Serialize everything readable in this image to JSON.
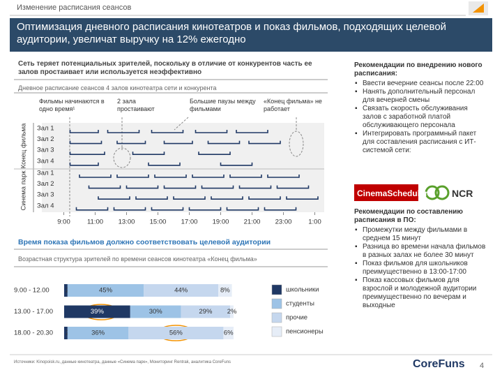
{
  "header": {
    "section": "Изменение расписания сеансов",
    "title": "Оптимизация дневного расписания кинотеатров и показ фильмов, подходящих целевой аудитории, увеличат выручку на 12% ежегодно"
  },
  "finding": "Сеть теряет потенциальных зрителей, поскольку в отличие от конкурентов часть ее залов простаивает или используется неэффективно",
  "chart_data": [
    {
      "type": "gantt",
      "title": "Дневное расписание сеансов 4 залов кинотеатра сети и конкурента",
      "color": "#1f3864",
      "groups": [
        {
          "name": "Конец фильма",
          "rows": [
            {
              "name": "Зал 1",
              "sessions": [
                [
                  9.4,
                  11.2
                ],
                [
                  11.8,
                  13.8
                ],
                [
                  14.6,
                  16.6
                ],
                [
                  17.4,
                  19.4
                ],
                [
                  20,
                  22
                ]
              ]
            },
            {
              "name": "Зал 2",
              "sessions": [
                [
                  9.4,
                  11.4
                ],
                [
                  12.4,
                  14.2
                ],
                [
                  15.4,
                  17.2
                ],
                [
                  18.2,
                  20.2
                ],
                [
                  20.8,
                  22.8
                ]
              ]
            },
            {
              "name": "Зал 3",
              "sessions": [
                [
                  9.4,
                  11.6
                ],
                [
                  13.4,
                  15.4
                ],
                [
                  17.6,
                  19.6
                ]
              ]
            },
            {
              "name": "Зал 4",
              "sessions": [
                [
                  9.4,
                  11.2
                ],
                [
                  14.4,
                  16.4
                ],
                [
                  19,
                  21
                ]
              ]
            }
          ]
        },
        {
          "name": "Синема парк",
          "rows": [
            {
              "name": "Зал 1",
              "sessions": [
                [
                  10,
                  12
                ],
                [
                  12.4,
                  14.4
                ],
                [
                  14.8,
                  16.8
                ],
                [
                  17.2,
                  19.2
                ],
                [
                  19.6,
                  21.6
                ],
                [
                  22,
                  24
                ]
              ]
            },
            {
              "name": "Зал 2",
              "sessions": [
                [
                  10.6,
                  12.6
                ],
                [
                  13,
                  15
                ],
                [
                  15.4,
                  17.4
                ],
                [
                  17.8,
                  19.8
                ],
                [
                  20.2,
                  22.2
                ],
                [
                  22.6,
                  24.6
                ]
              ]
            },
            {
              "name": "Зал 3",
              "sessions": [
                [
                  11.2,
                  13.2
                ],
                [
                  13.6,
                  15.6
                ],
                [
                  16,
                  18
                ],
                [
                  18.4,
                  20.4
                ],
                [
                  20.8,
                  22.8
                ],
                [
                  23.2,
                  25.2
                ]
              ]
            },
            {
              "name": "Зал 4",
              "sessions": [
                [
                  9.8,
                  11.8
                ],
                [
                  12.2,
                  14.2
                ],
                [
                  14.6,
                  16.6
                ],
                [
                  17,
                  19
                ],
                [
                  19.4,
                  21.4
                ],
                [
                  21.8,
                  23.8
                ]
              ]
            }
          ]
        }
      ],
      "xlim": [
        7.6,
        25.6
      ],
      "xticks": [
        {
          "value": 9,
          "label": "9:00"
        },
        {
          "value": 11,
          "label": "11:00"
        },
        {
          "value": 13,
          "label": "13:00"
        },
        {
          "value": 15,
          "label": "15:00"
        },
        {
          "value": 17,
          "label": "17:00"
        },
        {
          "value": 19,
          "label": "19:00"
        },
        {
          "value": 21,
          "label": "21:00"
        },
        {
          "value": 23,
          "label": "23:00"
        },
        {
          "value": 25,
          "label": "1:00"
        }
      ],
      "annotations": [
        "Фильмы начинаются в одно время¹",
        "2 зала простаивают",
        "Большие паузы между фильмами",
        "«Конец фильма» не работает"
      ]
    },
    {
      "type": "bar",
      "orientation": "horizontal",
      "stacked": true,
      "title": "Возрастная структура зрителей по времени сеансов кинотеатра «Конец фильма»",
      "categories": [
        "9.00 - 12.00",
        "13.00 - 17.00",
        "18.00 - 20.30"
      ],
      "xlim": [
        0,
        100
      ],
      "series": [
        {
          "name": "школьники",
          "color": "#1f3864",
          "values": [
            2,
            39,
            2
          ],
          "value_labels": [
            "2%",
            "39%",
            "2%"
          ]
        },
        {
          "name": "студенты",
          "color": "#9dc3e6",
          "values": [
            45,
            30,
            36
          ],
          "value_labels": [
            "45%",
            "30%",
            "36%"
          ]
        },
        {
          "name": "прочие",
          "color": "#c5d7ee",
          "values": [
            44,
            29,
            56
          ],
          "value_labels": [
            "44%",
            "29%",
            "56%"
          ]
        },
        {
          "name": "пенсионеры",
          "color": "#e6edf7",
          "values": [
            8,
            2,
            6
          ],
          "value_labels": [
            "8%",
            "2%",
            "6%"
          ]
        }
      ]
    }
  ],
  "audience_heading": "Время показа фильмов должно соответствовать целевой аудитории",
  "recommendations": [
    {
      "heading": "Рекомендации по внедрению нового расписания:",
      "items": [
        "Ввести вечерние сеансы после 22:00",
        "Нанять дополнительный персонал для вечерней смены",
        "Связать скорость обслуживания залов с заработной платой обслуживающего персонала",
        "Интегрировать программный пакет для составления расписания с ИТ-системой сети:"
      ]
    },
    {
      "heading": "Рекомендации по составлению расписания в ПО:",
      "items": [
        "Промежутки между фильмами в среднем 15 минут",
        "Разница во времени начала фильмов в разных залах не более 30 минут",
        "Показ фильмов для школьников преимущественно в 13:00-17:00",
        "Показ кассовых фильмов для взрослой и молодежной аудитории преимущественно по вечерам и выходные"
      ]
    }
  ],
  "logos": [
    "CinemaScheduler",
    "NCR"
  ],
  "source": "Источники: Kinopoisk.ru, данные кинотеатра, данные «Синема парк», Мониторинг Rentrak, аналитика CoreFuns",
  "footer": {
    "brand": "CoreFuns",
    "page": 4
  }
}
